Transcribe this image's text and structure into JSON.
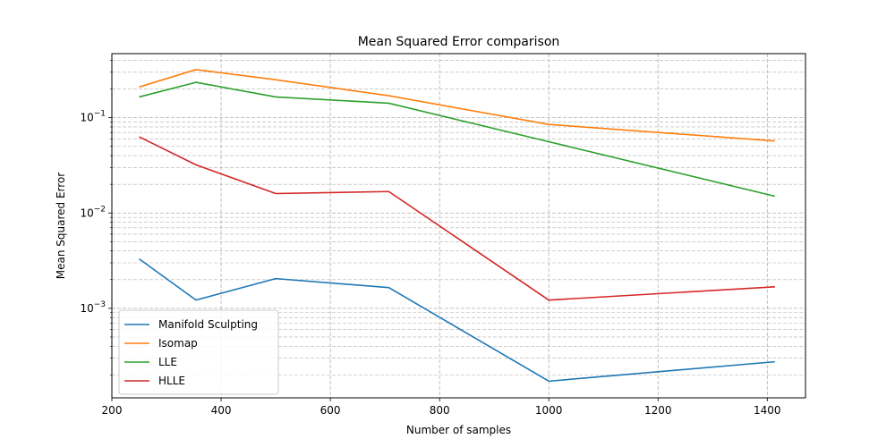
{
  "chart_data": {
    "type": "line",
    "title": "Mean Squared Error comparison",
    "xlabel": "Number of samples",
    "ylabel": "Mean Squared Error",
    "xlim": [
      200,
      1470
    ],
    "ylim": [
      0.000115,
      0.47
    ],
    "yscale": "log",
    "grid": true,
    "grid_style": "dashed, major and minor",
    "legend_position": "lower-left",
    "x_ticks": [
      200,
      400,
      600,
      800,
      1000,
      1200,
      1400
    ],
    "y_ticks": [
      {
        "value": 0.001,
        "base": "10",
        "exp": "−3"
      },
      {
        "value": 0.01,
        "base": "10",
        "exp": "−2"
      },
      {
        "value": 0.1,
        "base": "10",
        "exp": "−1"
      }
    ],
    "x": [
      250,
      354,
      500,
      707,
      1000,
      1414
    ],
    "series": [
      {
        "name": "Manifold Sculpting",
        "color": "#1f77b4",
        "values": [
          0.0033,
          0.00122,
          0.00205,
          0.00165,
          0.000172,
          0.000275
        ]
      },
      {
        "name": "Isomap",
        "color": "#ff7f0e",
        "values": [
          0.21,
          0.32,
          0.25,
          0.17,
          0.085,
          0.057
        ]
      },
      {
        "name": "LLE",
        "color": "#2ca02c",
        "values": [
          0.165,
          0.235,
          0.165,
          0.142,
          0.056,
          0.015
        ]
      },
      {
        "name": "HLLE",
        "color": "#d62728",
        "values": [
          0.063,
          0.032,
          0.016,
          0.0168,
          0.00122,
          0.00168
        ]
      }
    ]
  }
}
